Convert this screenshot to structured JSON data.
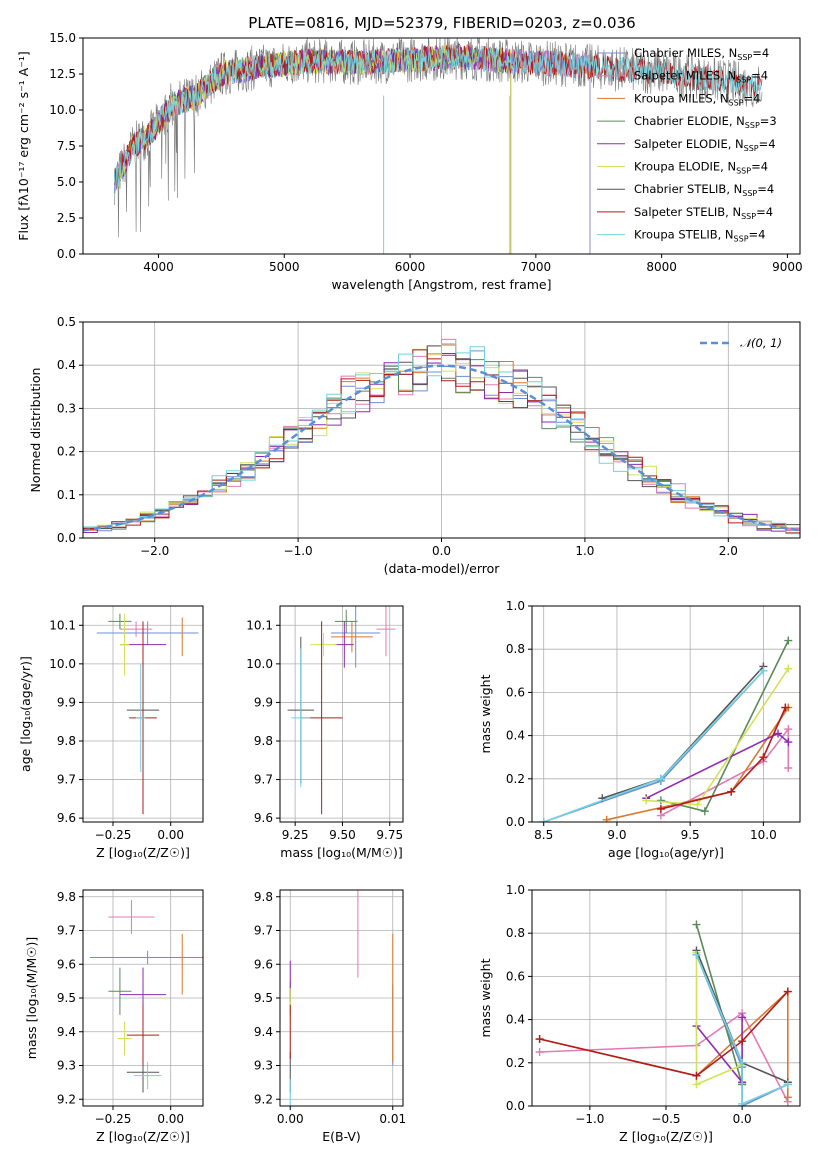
{
  "figure": {
    "title": "PLATE=0816, MJD=52379, FIBERID=0203, z=0.036"
  },
  "series_colors": [
    "#6b8fd6",
    "#e07bb5",
    "#d9782e",
    "#5a8a5a",
    "#8e2bb0",
    "#d4e05a",
    "#555555",
    "#b01c1c",
    "#72d2de"
  ],
  "chart_data": [
    {
      "id": "spectrum",
      "type": "line",
      "xlabel": "wavelength [Angstrom, rest frame]",
      "ylabel": "Flux [fλ10⁻¹⁷ erg cm⁻² s⁻¹ A⁻¹]",
      "xlim": [
        3400,
        9100
      ],
      "ylim": [
        0,
        15
      ],
      "xticks": [
        4000,
        5000,
        6000,
        7000,
        8000,
        9000
      ],
      "yticks": [
        0.0,
        2.5,
        5.0,
        7.5,
        10.0,
        12.5,
        15.0
      ],
      "legend": "right",
      "series": [
        {
          "name": "Chabrier MILES, N",
          "sub": "SSP",
          "tail": "=4"
        },
        {
          "name": "Salpeter MILES, N",
          "sub": "SSP",
          "tail": "=4"
        },
        {
          "name": "Kroupa MILES, N",
          "sub": "SSP",
          "tail": "=4"
        },
        {
          "name": "Chabrier ELODIE, N",
          "sub": "SSP",
          "tail": "=3"
        },
        {
          "name": "Salpeter ELODIE, N",
          "sub": "SSP",
          "tail": "=4"
        },
        {
          "name": "Kroupa ELODIE, N",
          "sub": "SSP",
          "tail": "=4"
        },
        {
          "name": "Chabrier STELIB, N",
          "sub": "SSP",
          "tail": "=4"
        },
        {
          "name": "Salpeter STELIB, N",
          "sub": "SSP",
          "tail": "=4"
        },
        {
          "name": "Kroupa STELIB, N",
          "sub": "SSP",
          "tail": "=4"
        }
      ],
      "data_range": [
        3650,
        8800
      ],
      "model_ends": {
        "MILES": 7430,
        "ELODIE": 6800,
        "STELIB": 9000
      },
      "envelope": [
        [
          3650,
          5
        ],
        [
          3800,
          7.5
        ],
        [
          3950,
          8.5
        ],
        [
          4100,
          10.3
        ],
        [
          4300,
          11
        ],
        [
          4500,
          12.5
        ],
        [
          4800,
          13
        ],
        [
          5200,
          13.4
        ],
        [
          5600,
          13.3
        ],
        [
          6000,
          13.5
        ],
        [
          6400,
          13.7
        ],
        [
          6800,
          13.4
        ],
        [
          7200,
          13.2
        ],
        [
          7600,
          12.9
        ],
        [
          8000,
          12.6
        ],
        [
          8400,
          12.1
        ],
        [
          8800,
          11.6
        ]
      ]
    },
    {
      "id": "residuals",
      "type": "histogram",
      "xlabel": "(data-model)/error",
      "ylabel": "Normed distribution",
      "xlim": [
        -2.5,
        2.5
      ],
      "ylim": [
        0,
        0.5
      ],
      "xticks": [
        -2,
        -1,
        0,
        1,
        2
      ],
      "yticks": [
        0.0,
        0.1,
        0.2,
        0.3,
        0.4,
        0.5
      ],
      "grid": true,
      "legend": "top-right",
      "reference_curve": {
        "name": "𝒩(0, 1)",
        "mean": 0,
        "sigma": 1
      }
    },
    {
      "id": "age-vs-Z",
      "type": "errorbar",
      "xlabel": "Z [log₁₀(Z/Z☉)]",
      "ylabel": "age  [log₁₀(age/yr)]",
      "xlim": [
        -0.38,
        0.14
      ],
      "ylim": [
        9.59,
        10.15
      ],
      "xticks": [
        -0.25,
        0.0
      ],
      "xticklabels": [
        "−0.25",
        "0.00"
      ],
      "yticks": [
        9.6,
        9.7,
        9.8,
        9.9,
        10.0,
        10.1
      ],
      "grid": true,
      "points": [
        {
          "x": -0.1,
          "xerr": 0.22,
          "y": 10.08,
          "yerr": 0.03
        },
        {
          "x": -0.15,
          "xerr": 0.07,
          "y": 10.09,
          "yerr": 0.02
        },
        {
          "x": 0.05,
          "xerr": 0.0,
          "y": 10.07,
          "yerr": 0.05
        },
        {
          "x": -0.22,
          "xerr": 0.05,
          "y": 10.11,
          "yerr": 0.02
        },
        {
          "x": -0.12,
          "xerr": 0.1,
          "y": 10.05,
          "yerr": 0.02
        },
        {
          "x": -0.2,
          "xerr": 0.02,
          "y": 10.05,
          "yerr": 0.08
        },
        {
          "x": -0.12,
          "xerr": 0.07,
          "y": 9.88,
          "yerr": 0.16
        },
        {
          "x": -0.12,
          "xerr": 0.06,
          "y": 9.86,
          "yerr": 0.25
        },
        {
          "x": -0.13,
          "xerr": 0.02,
          "y": 9.86,
          "yerr": 0.14
        }
      ]
    },
    {
      "id": "age-vs-mass",
      "type": "errorbar",
      "xlabel": "mass [log₁₀(M/M☉)]",
      "ylabel": "",
      "xlim": [
        9.17,
        9.82
      ],
      "ylim": [
        9.59,
        10.15
      ],
      "xticks": [
        9.25,
        9.5,
        9.75
      ],
      "xticklabels": [
        "9.25",
        "9.50",
        "9.75"
      ],
      "yticks": [
        9.6,
        9.7,
        9.8,
        9.9,
        10.0,
        10.1
      ],
      "grid": true,
      "points": [
        {
          "x": 9.57,
          "xerr": 0.13,
          "y": 10.08,
          "yerr": 0.09
        },
        {
          "x": 9.73,
          "xerr": 0.05,
          "y": 10.09,
          "yerr": 0.07
        },
        {
          "x": 9.55,
          "xerr": 0.11,
          "y": 10.07,
          "yerr": 0.04
        },
        {
          "x": 9.52,
          "xerr": 0.06,
          "y": 10.11,
          "yerr": 0.03
        },
        {
          "x": 9.51,
          "xerr": 0.05,
          "y": 10.05,
          "yerr": 0.06
        },
        {
          "x": 9.4,
          "xerr": 0.07,
          "y": 10.05,
          "yerr": 0.03
        },
        {
          "x": 9.28,
          "xerr": 0.07,
          "y": 9.88,
          "yerr": 0.19
        },
        {
          "x": 9.39,
          "xerr": 0.11,
          "y": 9.86,
          "yerr": 0.25
        },
        {
          "x": 9.28,
          "xerr": 0.05,
          "y": 9.86,
          "yerr": 0.18
        }
      ]
    },
    {
      "id": "mass-weight-vs-age",
      "type": "line",
      "xlabel": "age  [log₁₀(age/yr)]",
      "ylabel": "mass weight",
      "xlim": [
        8.42,
        10.25
      ],
      "ylim": [
        0,
        1
      ],
      "xticks": [
        8.5,
        9.0,
        9.5,
        10.0
      ],
      "xticklabels": [
        "8.5",
        "9.0",
        "9.5",
        "10.0"
      ],
      "yticks": [
        0.0,
        0.2,
        0.4,
        0.6,
        0.8,
        1.0
      ],
      "grid": true,
      "series": [
        {
          "x": [
            8.5,
            9.3,
            10.0
          ],
          "y": [
            0.0,
            0.19,
            0.7
          ]
        },
        {
          "x": [
            9.3,
            10.0,
            10.17,
            10.17
          ],
          "y": [
            0.03,
            0.28,
            0.43,
            0.25
          ]
        },
        {
          "x": [
            8.93,
            9.78,
            10.17,
            10.15
          ],
          "y": [
            0.01,
            0.14,
            0.53,
            0.53
          ]
        },
        {
          "x": [
            9.3,
            9.6,
            10.17
          ],
          "y": [
            0.1,
            0.05,
            0.84
          ]
        },
        {
          "x": [
            9.2,
            10.1,
            10.17
          ],
          "y": [
            0.11,
            0.41,
            0.37
          ]
        },
        {
          "x": [
            9.2,
            9.55,
            10.17
          ],
          "y": [
            0.1,
            0.08,
            0.71
          ]
        },
        {
          "x": [
            8.9,
            9.3,
            10.0
          ],
          "y": [
            0.11,
            0.2,
            0.72
          ]
        },
        {
          "x": [
            9.3,
            9.78,
            10.0,
            10.15
          ],
          "y": [
            0.06,
            0.14,
            0.3,
            0.53
          ]
        },
        {
          "x": [
            8.5,
            9.3,
            10.0
          ],
          "y": [
            0.0,
            0.2,
            0.7
          ]
        }
      ]
    },
    {
      "id": "mass-vs-Z",
      "type": "errorbar",
      "xlabel": "Z [log₁₀(Z/Z☉)]",
      "ylabel": "mass [log₁₀(M/M☉)]",
      "xlim": [
        -0.38,
        0.14
      ],
      "ylim": [
        9.18,
        9.82
      ],
      "xticks": [
        -0.25,
        0.0
      ],
      "xticklabels": [
        "−0.25",
        "0.00"
      ],
      "yticks": [
        9.2,
        9.3,
        9.4,
        9.5,
        9.6,
        9.7,
        9.8
      ],
      "grid": true,
      "points": [
        {
          "x": -0.1,
          "xerr": 0.25,
          "y": 9.62,
          "yerr": 0.02
        },
        {
          "x": -0.17,
          "xerr": 0.1,
          "y": 9.74,
          "yerr": 0.05
        },
        {
          "x": 0.05,
          "xerr": 0.0,
          "y": 9.6,
          "yerr": 0.09
        },
        {
          "x": -0.22,
          "xerr": 0.05,
          "y": 9.52,
          "yerr": 0.07
        },
        {
          "x": -0.12,
          "xerr": 0.1,
          "y": 9.51,
          "yerr": 0.08
        },
        {
          "x": -0.2,
          "xerr": 0.03,
          "y": 9.38,
          "yerr": 0.05
        },
        {
          "x": -0.12,
          "xerr": 0.07,
          "y": 9.28,
          "yerr": 0.06
        },
        {
          "x": -0.12,
          "xerr": 0.07,
          "y": 9.39,
          "yerr": 0.09
        },
        {
          "x": -0.1,
          "xerr": 0.06,
          "y": 9.27,
          "yerr": 0.04
        }
      ]
    },
    {
      "id": "mass-vs-EBV",
      "type": "errorbar",
      "xlabel": "E(B-V)",
      "ylabel": "",
      "xlim": [
        -0.001,
        0.011
      ],
      "ylim": [
        9.18,
        9.82
      ],
      "xticks": [
        0.0,
        0.01
      ],
      "xticklabels": [
        "0.00",
        "0.01"
      ],
      "yticks": [
        9.2,
        9.3,
        9.4,
        9.5,
        9.6,
        9.7,
        9.8
      ],
      "grid": true,
      "points": [
        {
          "x": 0.01,
          "xerr": 0,
          "y": 9.42,
          "yerr": 0.12
        },
        {
          "x": 0.0066,
          "xerr": 0,
          "y": 9.69,
          "yerr": 0.13
        },
        {
          "x": 0.01,
          "xerr": 0,
          "y": 9.5,
          "yerr": 0.19
        },
        {
          "x": 0.0,
          "xerr": 0,
          "y": 9.5,
          "yerr": 0.05
        },
        {
          "x": 0.0,
          "xerr": 0,
          "y": 9.55,
          "yerr": 0.06
        },
        {
          "x": 0.0,
          "xerr": 0,
          "y": 9.48,
          "yerr": 0.05
        },
        {
          "x": 0.0,
          "xerr": 0,
          "y": 9.28,
          "yerr": 0.06
        },
        {
          "x": 0.0,
          "xerr": 0,
          "y": 9.4,
          "yerr": 0.08
        },
        {
          "x": 0.0,
          "xerr": 0,
          "y": 9.2,
          "yerr": 0.06
        }
      ]
    },
    {
      "id": "mass-weight-vs-Z",
      "type": "line",
      "xlabel": "Z [log₁₀(Z/Z☉)]",
      "ylabel": "mass weight",
      "xlim": [
        -1.38,
        0.38
      ],
      "ylim": [
        0,
        1
      ],
      "xticks": [
        -1.0,
        -0.5,
        0.0
      ],
      "xticklabels": [
        "−1.0",
        "−0.5",
        "0.0"
      ],
      "yticks": [
        0.0,
        0.2,
        0.4,
        0.6,
        0.8,
        1.0
      ],
      "grid": true,
      "series": [
        {
          "x": [
            -0.3,
            0.0,
            0.0,
            0.3
          ],
          "y": [
            0.7,
            0.18,
            0.0,
            0.1
          ]
        },
        {
          "x": [
            -1.33,
            -0.3,
            0.0,
            0.3
          ],
          "y": [
            0.25,
            0.28,
            0.43,
            0.02
          ]
        },
        {
          "x": [
            -1.33,
            -0.3,
            0.3,
            0.3
          ],
          "y": [
            0.31,
            0.14,
            0.53,
            0.04
          ]
        },
        {
          "x": [
            -0.3,
            0.0,
            0.0
          ],
          "y": [
            0.84,
            0.1,
            0.1
          ]
        },
        {
          "x": [
            -0.3,
            0.0,
            0.0
          ],
          "y": [
            0.37,
            0.11,
            0.41
          ]
        },
        {
          "x": [
            -0.3,
            -0.3,
            0.0
          ],
          "y": [
            0.71,
            0.1,
            0.19
          ]
        },
        {
          "x": [
            -0.3,
            0.0,
            0.3
          ],
          "y": [
            0.72,
            0.2,
            0.11
          ]
        },
        {
          "x": [
            -1.33,
            -0.3,
            0.0,
            0.3
          ],
          "y": [
            0.31,
            0.14,
            0.3,
            0.53
          ]
        },
        {
          "x": [
            -0.3,
            0.0,
            0.0,
            0.3
          ],
          "y": [
            0.7,
            0.2,
            0.01,
            0.1
          ]
        }
      ]
    }
  ]
}
